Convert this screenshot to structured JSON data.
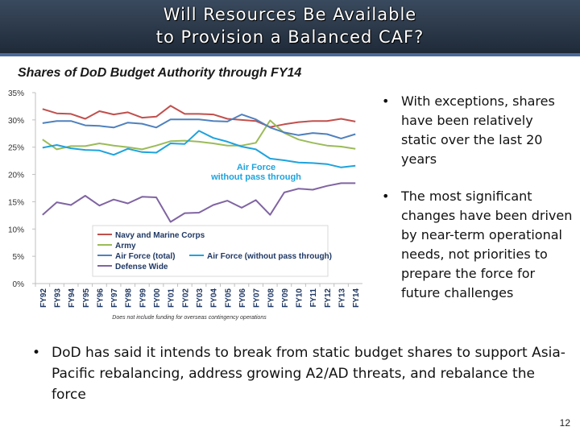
{
  "slide": {
    "title_line1": "Will Resources Be Available",
    "title_line2": "to Provision a Balanced CAF?",
    "subtitle": "Shares of DoD Budget Authority through FY14",
    "page_number": "12",
    "bullet_glyph": "•"
  },
  "bullets_right": [
    "With exceptions, shares have been relatively static over the last 20 years",
    "The most significant changes have been driven by near-term operational needs, not priorities to prepare the force for future challenges"
  ],
  "bullet_bottom": "DoD has said it intends to break from static budget shares to support Asia-Pacific rebalancing, address growing A2/AD threats, and rebalance the force",
  "chart_data": {
    "type": "line",
    "title": "Shares of DoD Budget Authority through FY14",
    "xlabel": "",
    "ylabel": "",
    "ylim": [
      0,
      35
    ],
    "y_ticks": [
      0,
      5,
      10,
      15,
      20,
      25,
      30,
      35
    ],
    "y_tick_labels": [
      "0%",
      "5%",
      "10%",
      "15%",
      "20%",
      "25%",
      "30%",
      "35%"
    ],
    "grid": false,
    "legend_position": "bottom-left",
    "categories": [
      "FY92",
      "FY93",
      "FY94",
      "FY95",
      "FY96",
      "FY97",
      "FY98",
      "FY99",
      "FY00",
      "FY01",
      "FY02",
      "FY03",
      "FY04",
      "FY05",
      "FY06",
      "FY07",
      "FY08",
      "FY09",
      "FY10",
      "FY11",
      "FY12",
      "FY13",
      "FY14"
    ],
    "series": [
      {
        "name": "Navy and Marine Corps",
        "color": "#c0504d",
        "values": [
          32.0,
          31.2,
          31.1,
          30.2,
          31.6,
          31.0,
          31.4,
          30.4,
          30.6,
          32.6,
          31.1,
          31.1,
          31.0,
          30.2,
          30.0,
          29.8,
          28.7,
          29.2,
          29.6,
          29.8,
          29.8,
          30.2,
          29.7
        ]
      },
      {
        "name": "Army",
        "color": "#9bbb59",
        "values": [
          26.4,
          24.6,
          25.2,
          25.2,
          25.7,
          25.3,
          25.0,
          24.6,
          25.3,
          26.1,
          26.2,
          26.0,
          25.7,
          25.3,
          25.3,
          25.8,
          29.9,
          27.6,
          26.4,
          25.8,
          25.3,
          25.1,
          24.7
        ]
      },
      {
        "name": "Air Force (total)",
        "color": "#4f81bd",
        "values": [
          29.4,
          29.8,
          29.8,
          29.0,
          28.9,
          28.6,
          29.5,
          29.3,
          28.6,
          30.1,
          30.1,
          30.1,
          29.8,
          29.7,
          31.0,
          30.1,
          28.6,
          27.7,
          27.2,
          27.6,
          27.4,
          26.6,
          27.4
        ]
      },
      {
        "name": "Air Force (without pass through)",
        "color": "#1fa3dd",
        "values": [
          24.9,
          25.4,
          24.8,
          24.5,
          24.4,
          23.6,
          24.7,
          24.1,
          24.0,
          25.7,
          25.6,
          28.0,
          26.7,
          26.0,
          25.1,
          24.6,
          22.9,
          22.6,
          22.2,
          22.1,
          21.9,
          21.3,
          21.6
        ]
      },
      {
        "name": "Defense Wide",
        "color": "#8064a2",
        "values": [
          12.6,
          14.9,
          14.4,
          16.1,
          14.3,
          15.4,
          14.7,
          15.9,
          15.8,
          11.3,
          12.9,
          13.0,
          14.4,
          15.2,
          13.9,
          15.3,
          12.6,
          16.7,
          17.4,
          17.2,
          17.9,
          18.4,
          18.4
        ]
      }
    ],
    "annotations": [
      {
        "text": "Air Force",
        "color": "#1fa3dd"
      },
      {
        "text": "without pass through",
        "color": "#1fa3dd"
      }
    ],
    "footnote": "Does not include funding for overseas contingency operations"
  }
}
